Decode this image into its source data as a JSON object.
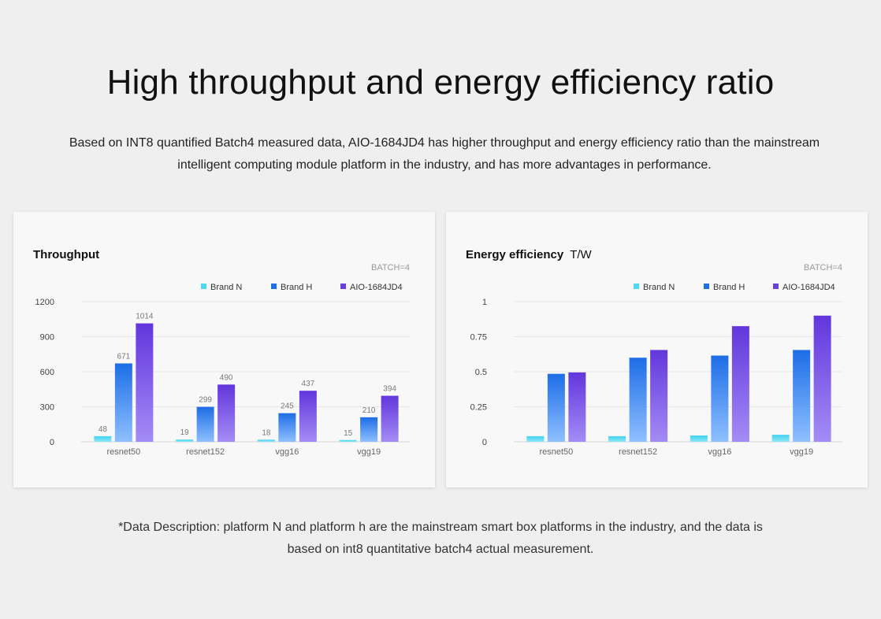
{
  "header": {
    "title": "High throughput and energy efficiency ratio",
    "subtitle": "Based on INT8 quantified Batch4 measured data, AIO-1684JD4 has higher throughput and energy efficiency ratio than the mainstream intelligent computing module platform in the industry, and has more advantages in performance."
  },
  "footnote": "*Data Description: platform N and platform h are the mainstream smart box platforms in the industry, and the data is based on int8 quantitative batch4 actual measurement.",
  "colors": {
    "brand_n": "#4dd9f2",
    "brand_h": "#1f6fe8",
    "aio": "#6a3fe0"
  },
  "chart_data": [
    {
      "type": "bar",
      "title": "Throughput",
      "unit": "",
      "note": "BATCH=4",
      "categories": [
        "resnet50",
        "resnet152",
        "vgg16",
        "vgg19"
      ],
      "series": [
        {
          "name": "Brand N",
          "values": [
            48,
            19,
            18,
            15
          ]
        },
        {
          "name": "Brand H",
          "values": [
            671,
            299,
            245,
            210
          ]
        },
        {
          "name": "AIO-1684JD4",
          "values": [
            1014,
            490,
            437,
            394
          ]
        }
      ],
      "ylim": [
        0,
        1200
      ],
      "yticks": [
        0,
        300,
        600,
        900,
        1200
      ],
      "ytick_labels": [
        "0",
        "300",
        "600",
        "900",
        "1200"
      ],
      "data_labels": true,
      "legend": "top-right",
      "grid": true
    },
    {
      "type": "bar",
      "title": "Energy efficiency",
      "unit": "T/W",
      "note": "BATCH=4",
      "categories": [
        "resnet50",
        "resnet152",
        "vgg16",
        "vgg19"
      ],
      "series": [
        {
          "name": "Brand N",
          "values": [
            0.04,
            0.04,
            0.045,
            0.05
          ]
        },
        {
          "name": "Brand H",
          "values": [
            0.485,
            0.6,
            0.615,
            0.655
          ]
        },
        {
          "name": "AIO-1684JD4",
          "values": [
            0.495,
            0.655,
            0.825,
            0.9
          ]
        }
      ],
      "ylim": [
        0,
        1
      ],
      "yticks": [
        0,
        0.25,
        0.5,
        0.75,
        1
      ],
      "ytick_labels": [
        "0",
        "0.25",
        "0.5",
        "0.75",
        "1"
      ],
      "data_labels": false,
      "legend": "top-right",
      "grid": true
    }
  ]
}
